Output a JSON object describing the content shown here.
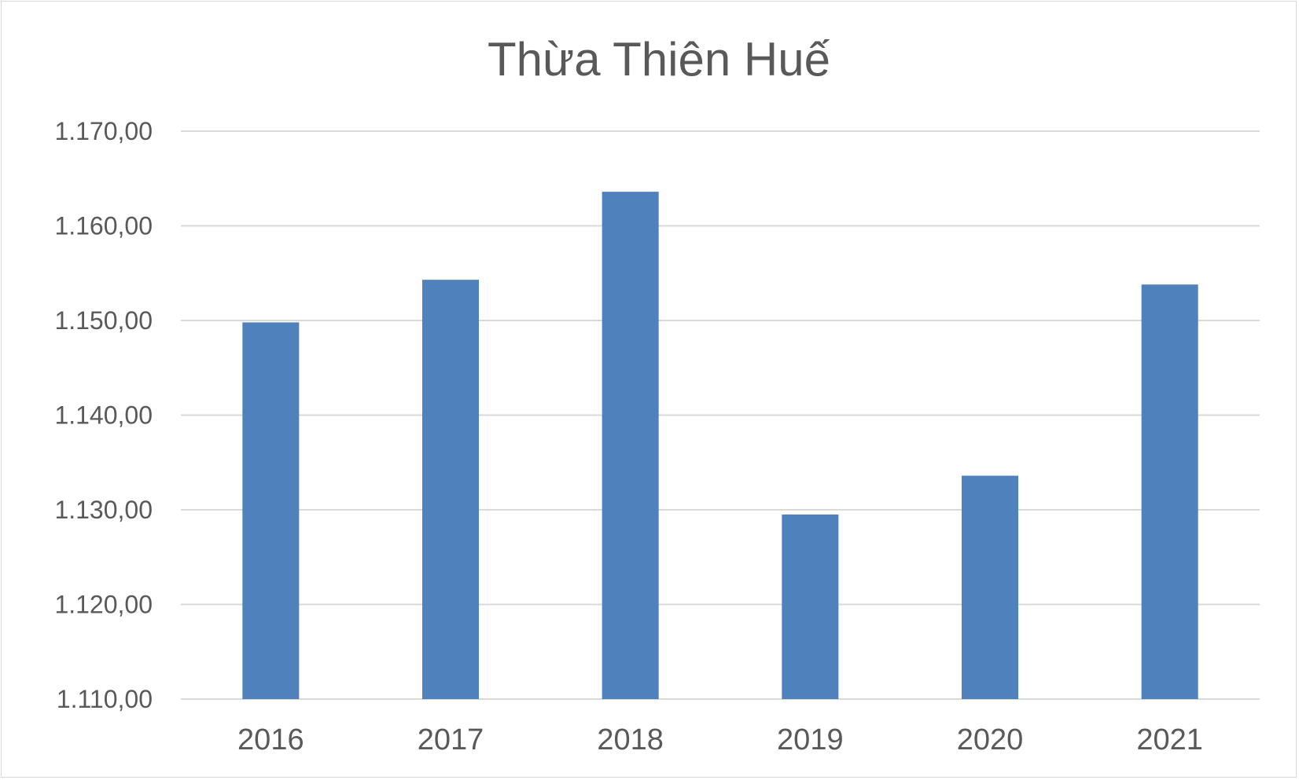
{
  "chart_data": {
    "type": "bar",
    "title": "Thừa Thiên Huế",
    "categories": [
      "2016",
      "2017",
      "2018",
      "2019",
      "2020",
      "2021"
    ],
    "series": [
      {
        "values": [
          1149.8,
          1154.3,
          1163.6,
          1129.5,
          1133.6,
          1153.8
        ]
      }
    ],
    "ylim": [
      1110,
      1170
    ],
    "yticks": [
      "1.110,00",
      "1.120,00",
      "1.130,00",
      "1.140,00",
      "1.150,00",
      "1.160,00",
      "1.170,00"
    ],
    "grid": true,
    "legend": "none",
    "bar_color": "#4f81bd"
  }
}
